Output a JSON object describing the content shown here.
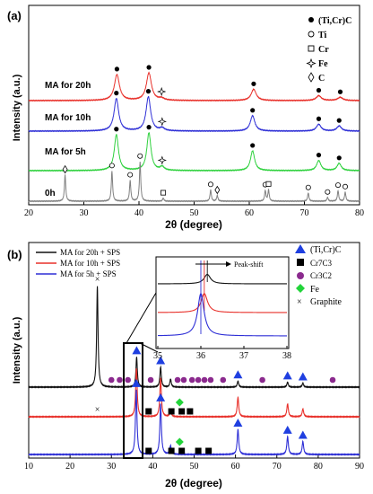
{
  "colors": {
    "black": "#111111",
    "red": "#e8302a",
    "blue": "#2e2fd6",
    "green": "#2fd13e",
    "gray": "#808080",
    "marker_blue": "#1f3fe0",
    "marker_purple": "#8b2a8e",
    "marker_green": "#22d43a"
  },
  "chart_data": [
    {
      "panel_label": "(a)",
      "type": "line",
      "xlabel": "2θ (degree)",
      "ylabel": "Intensity (a.u.)",
      "xlim": [
        20,
        80
      ],
      "xticks": [
        "20",
        "30",
        "40",
        "50",
        "60",
        "70",
        "80"
      ],
      "legend": [
        {
          "symbol": "●",
          "label": "(Ti,Cr)C"
        },
        {
          "symbol": "○",
          "label": "Ti"
        },
        {
          "symbol": "□",
          "label": "Cr"
        },
        {
          "symbol": "✧",
          "label": "Fe"
        },
        {
          "symbol": "◊",
          "label": "C"
        }
      ],
      "series": [
        {
          "name": "MA for 20h",
          "color": "red",
          "peaks": [
            [
              36.0,
              0.8
            ],
            [
              41.8,
              0.85
            ],
            [
              44.1,
              0.06
            ],
            [
              60.8,
              0.35
            ],
            [
              72.6,
              0.15
            ],
            [
              76.5,
              0.1
            ]
          ]
        },
        {
          "name": "MA for 10h",
          "color": "blue",
          "peaks": [
            [
              35.9,
              0.95
            ],
            [
              41.7,
              1.0
            ],
            [
              44.2,
              0.08
            ],
            [
              60.6,
              0.45
            ],
            [
              72.6,
              0.2
            ],
            [
              76.3,
              0.15
            ]
          ]
        },
        {
          "name": "MA for 5h",
          "color": "green",
          "peaks": [
            [
              35.9,
              1.0
            ],
            [
              41.8,
              1.05
            ],
            [
              44.2,
              0.1
            ],
            [
              60.6,
              0.55
            ],
            [
              72.6,
              0.28
            ],
            [
              76.3,
              0.2
            ]
          ]
        },
        {
          "name": "0h",
          "color": "gray",
          "peaks": [
            [
              26.6,
              0.7
            ],
            [
              35.1,
              0.8
            ],
            [
              38.4,
              0.55
            ],
            [
              40.2,
              1.05
            ],
            [
              44.4,
              0.08
            ],
            [
              53.0,
              0.3
            ],
            [
              54.2,
              0.15
            ],
            [
              62.9,
              0.28
            ],
            [
              63.5,
              0.3
            ],
            [
              70.7,
              0.22
            ],
            [
              74.2,
              0.1
            ],
            [
              76.1,
              0.28
            ],
            [
              77.4,
              0.24
            ]
          ]
        }
      ],
      "markers": [
        {
          "series": "MA for 20h",
          "symbol": "●",
          "x": [
            36.0,
            41.8,
            60.8,
            72.6,
            76.5
          ]
        },
        {
          "series": "MA for 20h",
          "symbol": "✧",
          "x": [
            44.1
          ]
        },
        {
          "series": "MA for 10h",
          "symbol": "●",
          "x": [
            35.9,
            41.7,
            60.6,
            72.6,
            76.3
          ]
        },
        {
          "series": "MA for 10h",
          "symbol": "✧",
          "x": [
            44.2
          ]
        },
        {
          "series": "MA for 5h",
          "symbol": "●",
          "x": [
            35.9,
            41.8,
            60.6,
            72.6,
            76.3
          ]
        },
        {
          "series": "MA for 5h",
          "symbol": "✧",
          "x": [
            44.2
          ]
        },
        {
          "series": "0h",
          "symbol": "◊",
          "x": [
            26.6,
            54.2
          ]
        },
        {
          "series": "0h",
          "symbol": "○",
          "x": [
            35.1,
            38.4,
            40.2,
            53.0,
            62.9,
            70.7,
            74.2,
            76.1,
            77.4
          ]
        },
        {
          "series": "0h",
          "symbol": "□",
          "x": [
            44.4,
            63.5
          ]
        }
      ]
    },
    {
      "panel_label": "(b)",
      "type": "line",
      "xlabel": "2θ (degree)",
      "ylabel": "Intensity (a.u.)",
      "xlim": [
        10,
        90
      ],
      "xticks": [
        "10",
        "20",
        "30",
        "40",
        "50",
        "60",
        "70",
        "80",
        "90"
      ],
      "series_legend": [
        {
          "label": "MA for 20h + SPS",
          "color": "black"
        },
        {
          "label": "MA for 10h + SPS",
          "color": "red"
        },
        {
          "label": "MA for 5h + SPS",
          "color": "blue"
        }
      ],
      "phase_legend": [
        {
          "symbol": "triangle",
          "color": "marker_blue",
          "label": "(Ti,Cr)C"
        },
        {
          "symbol": "square",
          "color": "black",
          "label": "Cr7C3"
        },
        {
          "symbol": "circle",
          "color": "marker_purple",
          "label": "Cr3C2"
        },
        {
          "symbol": "diamond",
          "color": "marker_green",
          "label": "Fe"
        },
        {
          "symbol": "cross",
          "color": "black",
          "label": "Graphite"
        }
      ],
      "series": [
        {
          "name": "MA for 20h + SPS",
          "color": "black",
          "peaks": [
            [
              26.6,
              1.0
            ],
            [
              36.1,
              0.3
            ],
            [
              41.9,
              0.2
            ],
            [
              44.3,
              0.08
            ],
            [
              60.6,
              0.06
            ],
            [
              72.6,
              0.05
            ],
            [
              76.3,
              0.04
            ]
          ]
        },
        {
          "name": "MA for 10h + SPS",
          "color": "red",
          "peaks": [
            [
              36.05,
              0.75
            ],
            [
              41.9,
              0.6
            ],
            [
              44.3,
              0.1
            ],
            [
              60.6,
              0.3
            ],
            [
              72.6,
              0.2
            ],
            [
              76.3,
              0.12
            ]
          ]
        },
        {
          "name": "MA for 5h + SPS",
          "color": "blue",
          "peaks": [
            [
              36.0,
              0.9
            ],
            [
              41.9,
              0.7
            ],
            [
              44.3,
              0.12
            ],
            [
              60.6,
              0.35
            ],
            [
              72.6,
              0.25
            ],
            [
              76.3,
              0.18
            ]
          ]
        }
      ],
      "markers": [
        {
          "series": "MA for 20h + SPS",
          "symbol": "cross",
          "x": [
            26.6
          ]
        },
        {
          "series": "MA for 20h + SPS",
          "symbol": "triangle",
          "x": [
            36.1,
            41.9,
            60.6,
            72.6,
            76.3
          ]
        },
        {
          "series": "MA for 20h + SPS",
          "symbol": "circle",
          "x": [
            30.0,
            32.0,
            34.0,
            39.5,
            46.0,
            47.5,
            49.5,
            51.0,
            52.5,
            54.0,
            57.0,
            66.5,
            83.5
          ]
        },
        {
          "series": "MA for 10h + SPS",
          "symbol": "cross",
          "x": [
            26.6
          ]
        },
        {
          "series": "MA for 10h + SPS",
          "symbol": "square",
          "x": [
            39.0,
            44.5,
            47.0,
            49.0
          ]
        },
        {
          "series": "MA for 10h + SPS",
          "symbol": "diamond",
          "x": [
            46.5
          ]
        },
        {
          "series": "MA for 5h + SPS",
          "symbol": "triangle",
          "x": [
            36.0,
            41.9,
            60.6,
            72.6,
            76.3
          ]
        },
        {
          "series": "MA for 5h + SPS",
          "symbol": "square",
          "x": [
            39.0,
            44.5,
            47.0,
            51.0,
            53.5
          ]
        },
        {
          "series": "MA for 5h + SPS",
          "symbol": "diamond",
          "x": [
            46.5
          ]
        }
      ],
      "inset": {
        "xlim": [
          35,
          38
        ],
        "xticks": [
          "35",
          "36",
          "37",
          "38"
        ],
        "annotation": "Peak-shift",
        "series": [
          {
            "color": "black",
            "center": 36.15,
            "height": 0.3
          },
          {
            "color": "red",
            "center": 36.08,
            "height": 0.55
          },
          {
            "color": "blue",
            "center": 36.0,
            "height": 0.9
          }
        ]
      }
    }
  ]
}
